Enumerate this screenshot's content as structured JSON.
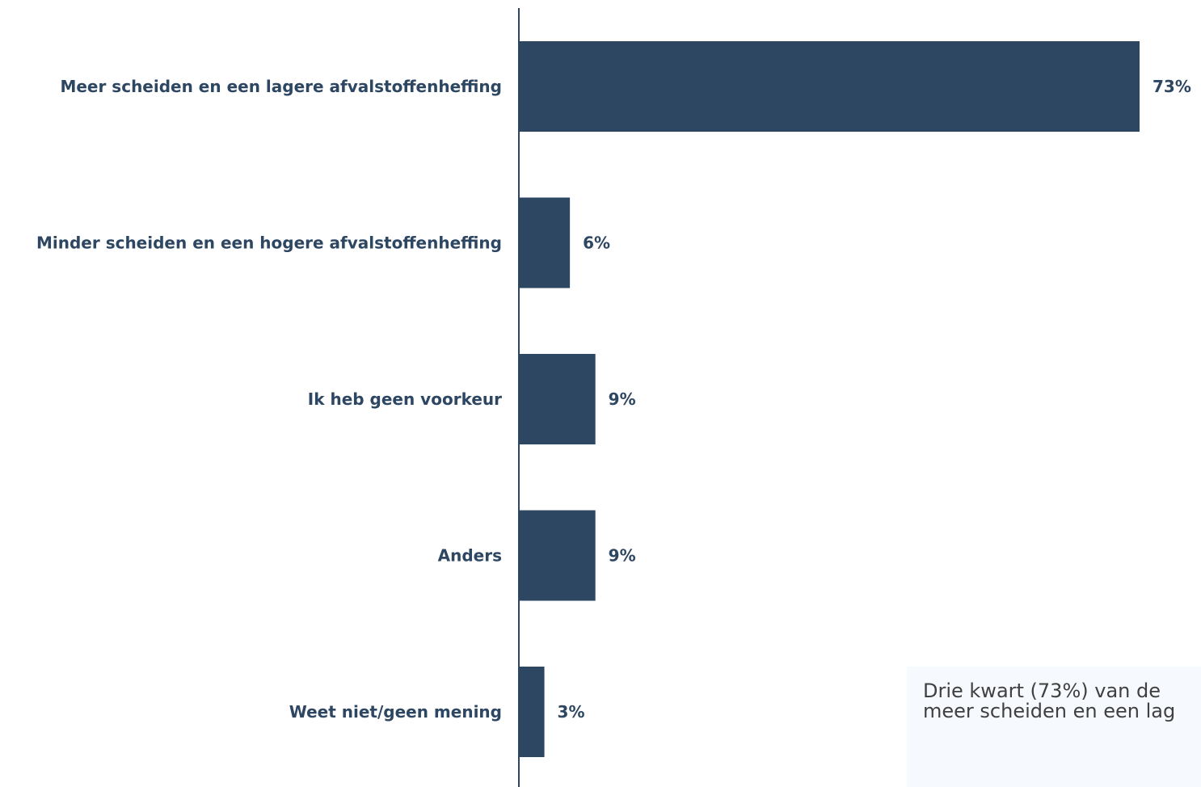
{
  "chart_data": {
    "type": "bar",
    "orientation": "horizontal",
    "categories": [
      "Meer scheiden en een lagere afvalstoffenheffing",
      "Minder scheiden en een hogere afvalstoffenheffing",
      "Ik heb geen voorkeur",
      "Anders",
      "Weet niet/geen mening"
    ],
    "values": [
      73,
      6,
      9,
      9,
      3
    ],
    "value_labels": [
      "73%",
      "6%",
      "9%",
      "9%",
      "3%"
    ],
    "unit": "%",
    "xlim": [
      0,
      73
    ],
    "grid": false,
    "bar_color": "#2d4662"
  },
  "annotation": {
    "line1": "Drie kwart (73%) van de",
    "line2": "meer scheiden en een lag"
  }
}
